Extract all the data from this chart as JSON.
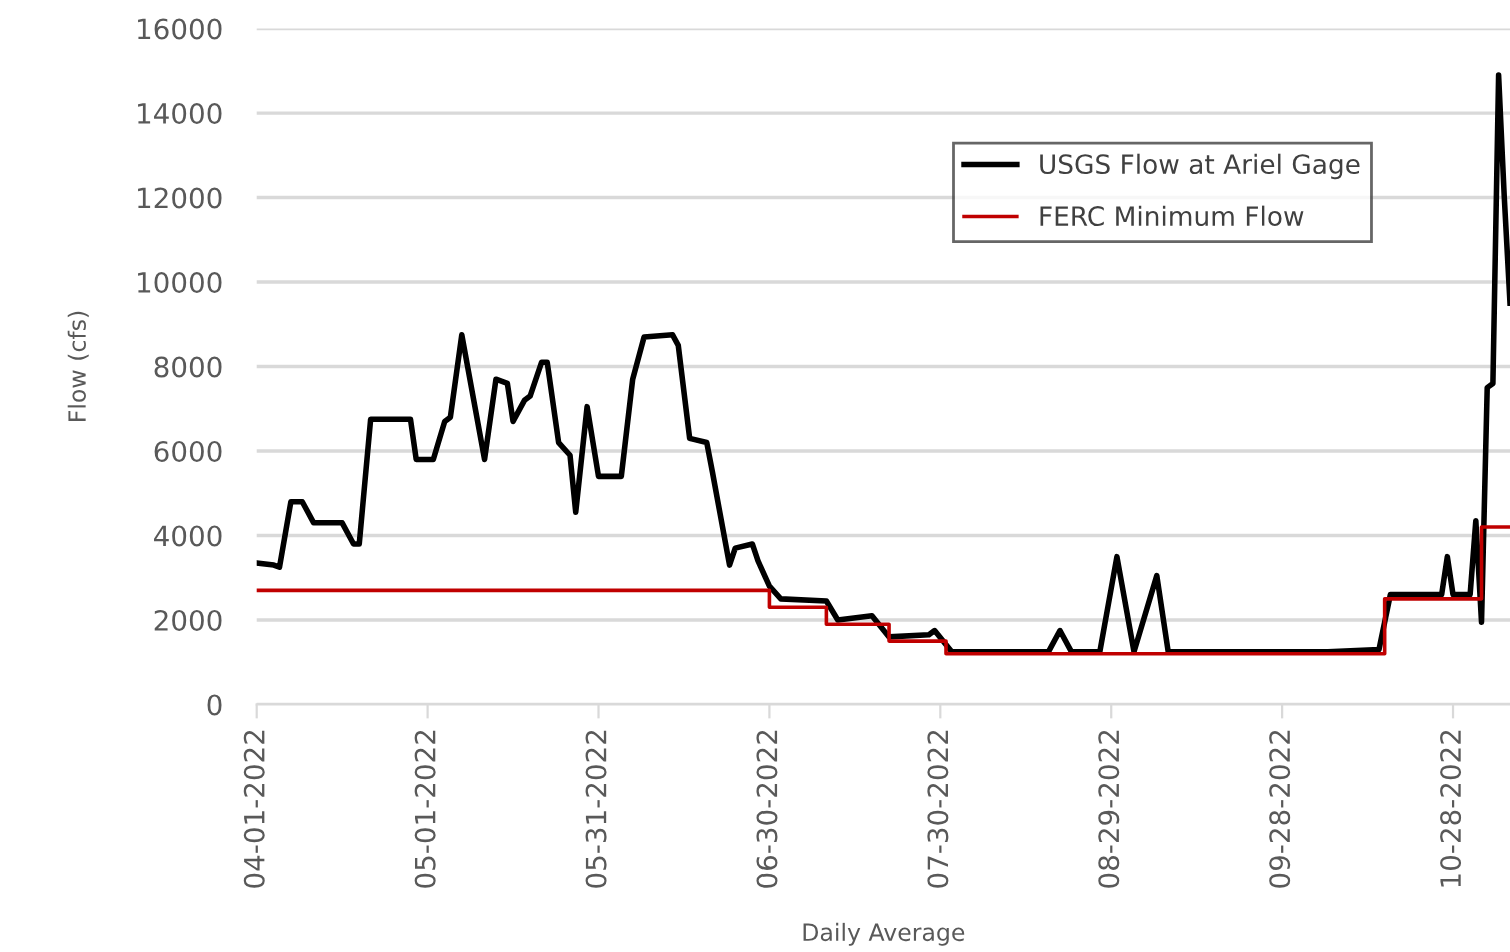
{
  "chart_data": {
    "type": "line",
    "xlabel": "Daily Average",
    "ylabel": "Flow (cfs)",
    "xlim": [
      "2022-04-01",
      "2022-11-07"
    ],
    "ylim": [
      0,
      16000
    ],
    "yticks": [
      0,
      2000,
      4000,
      6000,
      8000,
      10000,
      12000,
      14000,
      16000
    ],
    "xticks": [
      {
        "value": "2022-04-01",
        "label": "04-01-2022"
      },
      {
        "value": "2022-05-01",
        "label": "05-01-2022"
      },
      {
        "value": "2022-05-31",
        "label": "05-31-2022"
      },
      {
        "value": "2022-06-30",
        "label": "06-30-2022"
      },
      {
        "value": "2022-07-30",
        "label": "07-30-2022"
      },
      {
        "value": "2022-08-29",
        "label": "08-29-2022"
      },
      {
        "value": "2022-09-28",
        "label": "09-28-2022"
      },
      {
        "value": "2022-10-28",
        "label": "10-28-2022"
      }
    ],
    "grid": "y",
    "legend": "top right",
    "marker": "none",
    "line_style": "solid",
    "series": [
      {
        "name": "USGS Flow at Ariel Gage",
        "color": "#000000",
        "x": [
          "2022-04-01",
          "2022-04-04",
          "2022-04-05",
          "2022-04-07",
          "2022-04-09",
          "2022-04-11",
          "2022-04-16",
          "2022-04-18",
          "2022-04-19",
          "2022-04-21",
          "2022-04-28",
          "2022-04-29",
          "2022-05-02",
          "2022-05-04",
          "2022-05-05",
          "2022-05-07",
          "2022-05-11",
          "2022-05-13",
          "2022-05-15",
          "2022-05-16",
          "2022-05-18",
          "2022-05-19",
          "2022-05-21",
          "2022-05-22",
          "2022-05-24",
          "2022-05-26",
          "2022-05-27",
          "2022-05-29",
          "2022-05-31",
          "2022-06-04",
          "2022-06-06",
          "2022-06-08",
          "2022-06-13",
          "2022-06-14",
          "2022-06-16",
          "2022-06-19",
          "2022-06-20",
          "2022-06-23",
          "2022-06-24",
          "2022-06-27",
          "2022-06-28",
          "2022-06-30",
          "2022-07-02",
          "2022-07-10",
          "2022-07-12",
          "2022-07-18",
          "2022-07-21",
          "2022-07-28",
          "2022-07-29",
          "2022-08-01",
          "2022-08-18",
          "2022-08-20",
          "2022-08-22",
          "2022-08-27",
          "2022-08-30",
          "2022-09-02",
          "2022-09-06",
          "2022-09-08",
          "2022-10-06",
          "2022-10-15",
          "2022-10-17",
          "2022-10-26",
          "2022-10-27",
          "2022-10-28",
          "2022-10-31",
          "2022-11-01",
          "2022-11-02",
          "2022-11-03",
          "2022-11-04",
          "2022-11-05",
          "2022-11-06",
          "2022-11-07"
        ],
        "values": [
          3350,
          3300,
          3250,
          4800,
          4800,
          4300,
          4300,
          3800,
          3800,
          6750,
          6750,
          5800,
          5800,
          6700,
          6800,
          8750,
          5800,
          7700,
          7600,
          6700,
          7200,
          7300,
          8100,
          8100,
          6200,
          5900,
          4550,
          7050,
          5400,
          5400,
          7700,
          8700,
          8750,
          8500,
          6300,
          6200,
          5500,
          3300,
          3700,
          3800,
          3400,
          2800,
          2500,
          2450,
          2000,
          2100,
          1600,
          1650,
          1750,
          1250,
          1250,
          1750,
          1250,
          1250,
          3500,
          1250,
          3050,
          1250,
          1250,
          1300,
          2600,
          2600,
          3500,
          2600,
          2600,
          4350,
          1950,
          7500,
          7600,
          14900,
          12000,
          9500
        ]
      },
      {
        "name": "FERC Minimum Flow",
        "color": "#c00000",
        "type": "step",
        "x": [
          "2022-04-01",
          "2022-06-30",
          "2022-07-10",
          "2022-07-21",
          "2022-07-31",
          "2022-10-16",
          "2022-11-02",
          "2022-11-07"
        ],
        "values": [
          2700,
          2300,
          1900,
          1500,
          1200,
          2500,
          4200,
          4200
        ]
      }
    ]
  }
}
